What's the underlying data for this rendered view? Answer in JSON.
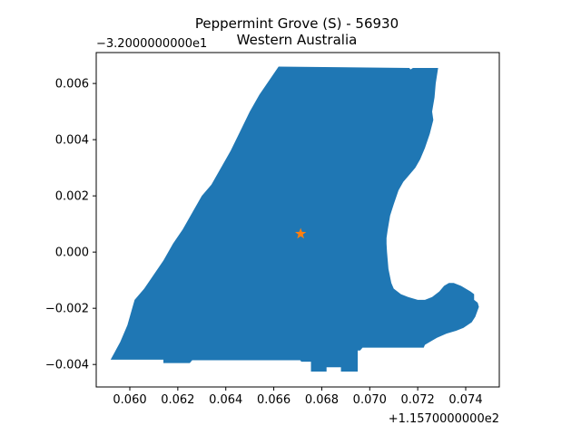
{
  "title_line1": "Peppermint Grove (S) - 56930",
  "title_line2": "Western Australia",
  "x_offset_label": "+1.1570000000e2",
  "y_offset_label": "−3.2000000000e1",
  "colors": {
    "region_fill": "#1f77b4",
    "marker": "#ff7f0e",
    "axes": "#000000",
    "background": "#ffffff"
  },
  "icons": {
    "marker": "star-icon"
  },
  "chart_data": {
    "type": "map",
    "title": "Peppermint Grove (S) - 56930\nWestern Australia",
    "xlabel": "",
    "ylabel": "",
    "xlim": [
      0.0586,
      0.0754
    ],
    "ylim": [
      -0.0048,
      0.0071
    ],
    "x_ticks": [
      0.06,
      0.062,
      0.064,
      0.066,
      0.068,
      0.07,
      0.072,
      0.074
    ],
    "x_tick_labels": [
      "0.060",
      "0.062",
      "0.064",
      "0.066",
      "0.068",
      "0.070",
      "0.072",
      "0.074"
    ],
    "y_ticks": [
      -0.004,
      -0.002,
      0.0,
      0.002,
      0.004,
      0.006
    ],
    "y_tick_labels": [
      "−0.004",
      "−0.002",
      "0.000",
      "0.002",
      "0.004",
      "0.006"
    ],
    "grid": false,
    "region_polygon": [
      [
        0.0662,
        0.0066
      ],
      [
        0.07165,
        0.00655
      ],
      [
        0.0717,
        0.0065
      ],
      [
        0.0718,
        0.00655
      ],
      [
        0.07285,
        0.00655
      ],
      [
        0.07275,
        0.006
      ],
      [
        0.0727,
        0.0055
      ],
      [
        0.0726,
        0.005
      ],
      [
        0.07265,
        0.0047
      ],
      [
        0.0725,
        0.0042
      ],
      [
        0.0723,
        0.0037
      ],
      [
        0.0721,
        0.0033
      ],
      [
        0.0719,
        0.003
      ],
      [
        0.0716,
        0.0027
      ],
      [
        0.0714,
        0.0025
      ],
      [
        0.0712,
        0.0022
      ],
      [
        0.071,
        0.0017
      ],
      [
        0.07085,
        0.0013
      ],
      [
        0.07075,
        0.0008
      ],
      [
        0.0707,
        0.0005
      ],
      [
        0.0707,
        0.0003
      ],
      [
        0.07072,
        0.0
      ],
      [
        0.07078,
        -0.0006
      ],
      [
        0.0709,
        -0.0011
      ],
      [
        0.071,
        -0.0013
      ],
      [
        0.0713,
        -0.0015
      ],
      [
        0.0716,
        -0.0016
      ],
      [
        0.072,
        -0.0017
      ],
      [
        0.0723,
        -0.0017
      ],
      [
        0.0726,
        -0.0016
      ],
      [
        0.0729,
        -0.0014
      ],
      [
        0.0731,
        -0.0012
      ],
      [
        0.0733,
        -0.0011
      ],
      [
        0.0735,
        -0.0011
      ],
      [
        0.0738,
        -0.0012
      ],
      [
        0.074,
        -0.0013
      ],
      [
        0.0742,
        -0.0014
      ],
      [
        0.07435,
        -0.0015
      ],
      [
        0.07435,
        -0.0017
      ],
      [
        0.0745,
        -0.0018
      ],
      [
        0.07455,
        -0.00195
      ],
      [
        0.0744,
        -0.0023
      ],
      [
        0.07425,
        -0.0025
      ],
      [
        0.0739,
        -0.0027
      ],
      [
        0.0736,
        -0.0028
      ],
      [
        0.0732,
        -0.0029
      ],
      [
        0.0728,
        -0.00305
      ],
      [
        0.0725,
        -0.0032
      ],
      [
        0.0723,
        -0.0033
      ],
      [
        0.07225,
        -0.0034
      ],
      [
        0.0697,
        -0.0034
      ],
      [
        0.0696,
        -0.0035
      ],
      [
        0.0695,
        -0.0035
      ],
      [
        0.0695,
        -0.00425
      ],
      [
        0.0688,
        -0.00425
      ],
      [
        0.0688,
        -0.0041
      ],
      [
        0.0682,
        -0.0041
      ],
      [
        0.0682,
        -0.00425
      ],
      [
        0.06755,
        -0.00425
      ],
      [
        0.06755,
        -0.0039
      ],
      [
        0.06715,
        -0.0039
      ],
      [
        0.0671,
        -0.00385
      ],
      [
        0.0626,
        -0.00385
      ],
      [
        0.0625,
        -0.00395
      ],
      [
        0.0614,
        -0.00395
      ],
      [
        0.0614,
        -0.00383
      ],
      [
        0.0592,
        -0.00383
      ],
      [
        0.0596,
        -0.0032
      ],
      [
        0.0599,
        -0.0026
      ],
      [
        0.0601,
        -0.002
      ],
      [
        0.0602,
        -0.0017
      ],
      [
        0.0606,
        -0.0013
      ],
      [
        0.061,
        -0.0008
      ],
      [
        0.0614,
        -0.0003
      ],
      [
        0.0618,
        0.0003
      ],
      [
        0.0622,
        0.0008
      ],
      [
        0.0626,
        0.0014
      ],
      [
        0.063,
        0.002
      ],
      [
        0.0634,
        0.0024
      ],
      [
        0.0638,
        0.003
      ],
      [
        0.0642,
        0.0036
      ],
      [
        0.0646,
        0.0043
      ],
      [
        0.065,
        0.005
      ],
      [
        0.0654,
        0.0056
      ],
      [
        0.0658,
        0.0061
      ],
      [
        0.0662,
        0.0066
      ]
    ],
    "marker_point": [
      0.06712,
      0.00065
    ]
  }
}
